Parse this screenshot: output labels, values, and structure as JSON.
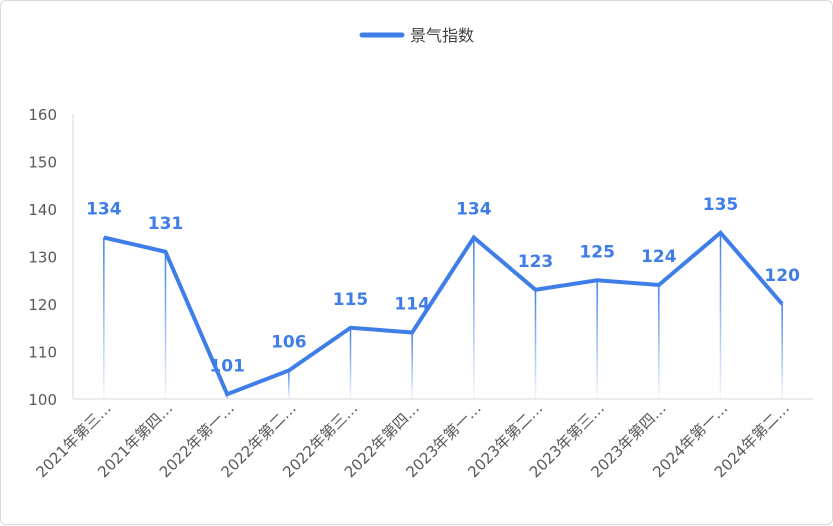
{
  "chart_data": {
    "type": "line",
    "categories": [
      "2021年第三…",
      "2021年第四…",
      "2022年第一…",
      "2022年第二…",
      "2022年第三…",
      "2022年第四…",
      "2023年第一…",
      "2023年第二…",
      "2023年第三…",
      "2023年第四…",
      "2024年第一…",
      "2024年第二…"
    ],
    "series": [
      {
        "name": "景气指数",
        "values": [
          134,
          131,
          101,
          106,
          115,
          114,
          134,
          123,
          125,
          124,
          135,
          120
        ],
        "color": "#3f7de8"
      }
    ],
    "data_labels": [
      "134",
      "131",
      "101",
      "106",
      "115",
      "114",
      "134",
      "123",
      "125",
      "124",
      "135",
      "120"
    ],
    "y_ticks": [
      "100",
      "110",
      "120",
      "130",
      "140",
      "150",
      "160"
    ],
    "ylim": [
      100,
      160
    ],
    "grid": false,
    "legend_position": "top-center",
    "title": "",
    "xlabel": "",
    "ylabel": ""
  }
}
